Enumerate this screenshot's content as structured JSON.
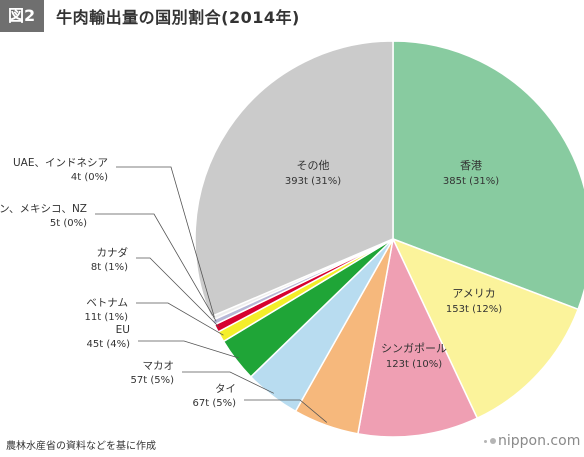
{
  "header": {
    "fig_tag": "図2",
    "title": "牛肉輸出量の国別割合(2014年)"
  },
  "footer": {
    "source": "農林水産省の資料などを基に作成",
    "brand": "nippon.com"
  },
  "chart_data": {
    "type": "pie",
    "title": "牛肉輸出量の国別割合(2014年)",
    "slices": [
      {
        "name": "香港",
        "value": 385,
        "value_label": "385t",
        "pct_label": "(31%)",
        "color": "#88cba0",
        "label_position": "inside"
      },
      {
        "name": "アメリカ",
        "value": 153,
        "value_label": "153t",
        "pct_label": "(12%)",
        "color": "#fbf39b",
        "label_position": "inside"
      },
      {
        "name": "シンガポール",
        "value": 123,
        "value_label": "123t",
        "pct_label": "(10%)",
        "color": "#ef9fb3",
        "label_position": "inside"
      },
      {
        "name": "タイ",
        "value": 67,
        "value_label": "67t",
        "pct_label": "(5%)",
        "color": "#f6b87c",
        "label_position": "outside"
      },
      {
        "name": "マカオ",
        "value": 57,
        "value_label": "57t",
        "pct_label": "(5%)",
        "color": "#b8dcf0",
        "label_position": "outside"
      },
      {
        "name": "EU",
        "value": 45,
        "value_label": "45t",
        "pct_label": "(4%)",
        "color": "#1fa537",
        "label_position": "outside"
      },
      {
        "name": "ベトナム",
        "value": 11,
        "value_label": "11t",
        "pct_label": "(1%)",
        "color": "#f4ee2a",
        "label_position": "outside"
      },
      {
        "name": "カナダ",
        "value": 8,
        "value_label": "8t",
        "pct_label": "(1%)",
        "color": "#d7002f",
        "label_position": "outside"
      },
      {
        "name": "フィリピン、メキシコ、NZ",
        "value": 5,
        "value_label": "5t",
        "pct_label": "(0%)",
        "color": "#b7b7d6",
        "label_position": "outside"
      },
      {
        "name": "UAE、インドネシア",
        "value": 4,
        "value_label": "4t",
        "pct_label": "(0%)",
        "color": "#eeeeee",
        "label_position": "outside"
      },
      {
        "name": "その他",
        "value": 393,
        "value_label": "393t",
        "pct_label": "(31%)",
        "color": "#cbcbcb",
        "label_position": "inside"
      }
    ]
  }
}
